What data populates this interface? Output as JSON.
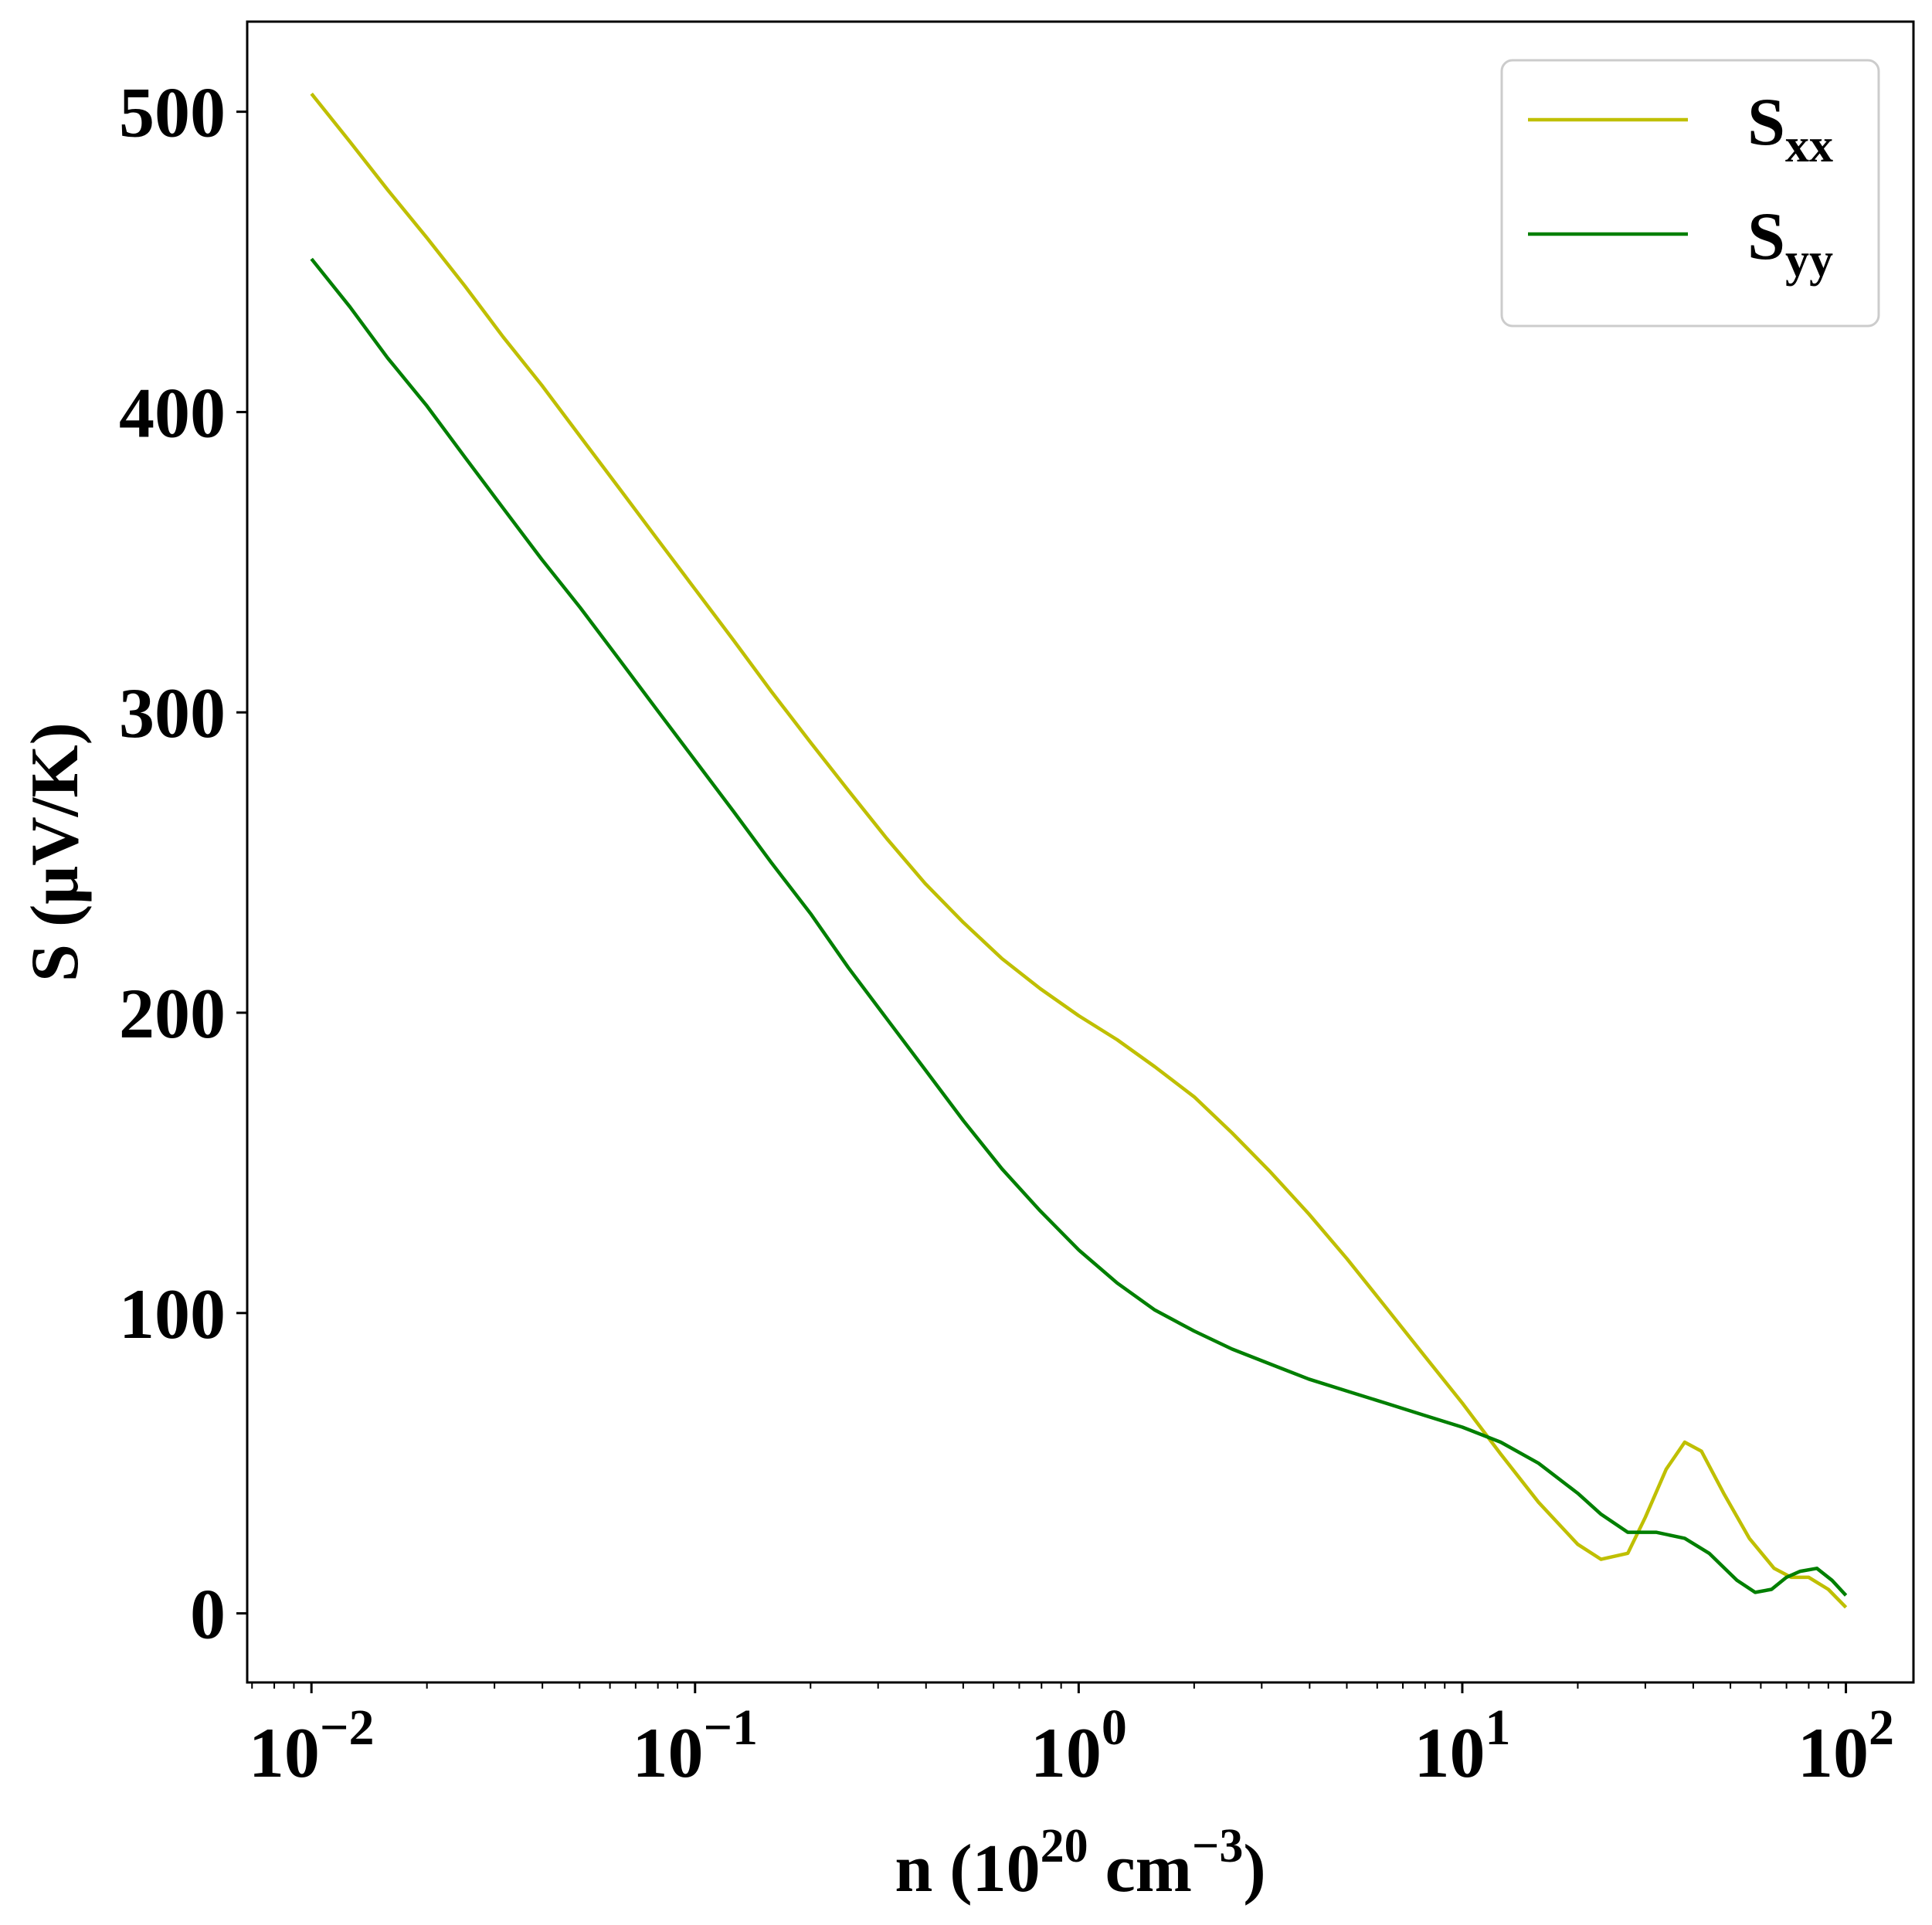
{
  "chart_data": {
    "type": "line",
    "x_scale": "log",
    "xlabel": {
      "base": "n (10",
      "sup1": "20",
      "mid": " cm",
      "sup2": "−3",
      "tail": ")"
    },
    "ylabel": "S (μV/K)",
    "xlim": [
      0.0068,
      150
    ],
    "ylim": [
      -23,
      530
    ],
    "x_ticks": [
      {
        "value": 0.01,
        "base": "10",
        "exp": "−2"
      },
      {
        "value": 0.1,
        "base": "10",
        "exp": "−1"
      },
      {
        "value": 1,
        "base": "10",
        "exp": "0"
      },
      {
        "value": 10,
        "base": "10",
        "exp": "1"
      },
      {
        "value": 100,
        "base": "10",
        "exp": "2"
      }
    ],
    "y_ticks": [
      {
        "value": 0,
        "label": "0"
      },
      {
        "value": 100,
        "label": "100"
      },
      {
        "value": 200,
        "label": "200"
      },
      {
        "value": 300,
        "label": "300"
      },
      {
        "value": 400,
        "label": "400"
      },
      {
        "value": 500,
        "label": "500"
      }
    ],
    "grid": false,
    "legend_position": "top-right",
    "series": [
      {
        "name": "S",
        "sub": "xx",
        "color": "#bfbf00",
        "points": [
          [
            0.01,
            506
          ],
          [
            0.0126,
            490
          ],
          [
            0.0158,
            474
          ],
          [
            0.02,
            458
          ],
          [
            0.0251,
            442
          ],
          [
            0.0316,
            425
          ],
          [
            0.0398,
            409
          ],
          [
            0.0501,
            392
          ],
          [
            0.0631,
            375
          ],
          [
            0.0794,
            358
          ],
          [
            0.1,
            341
          ],
          [
            0.126,
            324
          ],
          [
            0.158,
            307
          ],
          [
            0.2,
            290
          ],
          [
            0.251,
            274
          ],
          [
            0.316,
            258
          ],
          [
            0.398,
            243
          ],
          [
            0.501,
            230
          ],
          [
            0.631,
            218
          ],
          [
            0.794,
            208
          ],
          [
            1.0,
            199
          ],
          [
            1.26,
            191
          ],
          [
            1.58,
            182
          ],
          [
            2.0,
            172
          ],
          [
            2.51,
            160
          ],
          [
            3.16,
            147
          ],
          [
            3.98,
            133
          ],
          [
            5.01,
            118
          ],
          [
            6.31,
            102
          ],
          [
            7.94,
            86
          ],
          [
            10.0,
            70
          ],
          [
            12.6,
            53
          ],
          [
            15.8,
            37
          ],
          [
            20.0,
            23
          ],
          [
            23.0,
            18
          ],
          [
            27.0,
            20
          ],
          [
            30.0,
            32
          ],
          [
            34.0,
            48
          ],
          [
            38.0,
            57
          ],
          [
            42.0,
            54
          ],
          [
            48.0,
            40
          ],
          [
            56.0,
            25
          ],
          [
            65.0,
            15
          ],
          [
            72.0,
            12
          ],
          [
            80.0,
            12
          ],
          [
            90.0,
            8
          ],
          [
            100.0,
            2
          ]
        ]
      },
      {
        "name": "S",
        "sub": "yy",
        "color": "#007f00",
        "points": [
          [
            0.01,
            451
          ],
          [
            0.0126,
            435
          ],
          [
            0.0158,
            418
          ],
          [
            0.02,
            402
          ],
          [
            0.0251,
            385
          ],
          [
            0.0316,
            368
          ],
          [
            0.0398,
            351
          ],
          [
            0.0501,
            335
          ],
          [
            0.0631,
            318
          ],
          [
            0.0794,
            301
          ],
          [
            0.1,
            284
          ],
          [
            0.126,
            267
          ],
          [
            0.158,
            250
          ],
          [
            0.2,
            233
          ],
          [
            0.251,
            215
          ],
          [
            0.316,
            198
          ],
          [
            0.398,
            181
          ],
          [
            0.501,
            164
          ],
          [
            0.631,
            148
          ],
          [
            0.794,
            134
          ],
          [
            1.0,
            121
          ],
          [
            1.26,
            110
          ],
          [
            1.58,
            101
          ],
          [
            2.0,
            94
          ],
          [
            2.51,
            88
          ],
          [
            3.16,
            83
          ],
          [
            3.98,
            78
          ],
          [
            5.01,
            74
          ],
          [
            6.31,
            70
          ],
          [
            7.94,
            66
          ],
          [
            10.0,
            62
          ],
          [
            12.6,
            57
          ],
          [
            15.8,
            50
          ],
          [
            20.0,
            40
          ],
          [
            23.0,
            33
          ],
          [
            27.0,
            27
          ],
          [
            32.0,
            27
          ],
          [
            38.0,
            25
          ],
          [
            44.0,
            20
          ],
          [
            52.0,
            11
          ],
          [
            58.0,
            7
          ],
          [
            64.0,
            8
          ],
          [
            70.0,
            12
          ],
          [
            76.0,
            14
          ],
          [
            84.0,
            15
          ],
          [
            92.0,
            11
          ],
          [
            100.0,
            6
          ]
        ]
      }
    ]
  }
}
